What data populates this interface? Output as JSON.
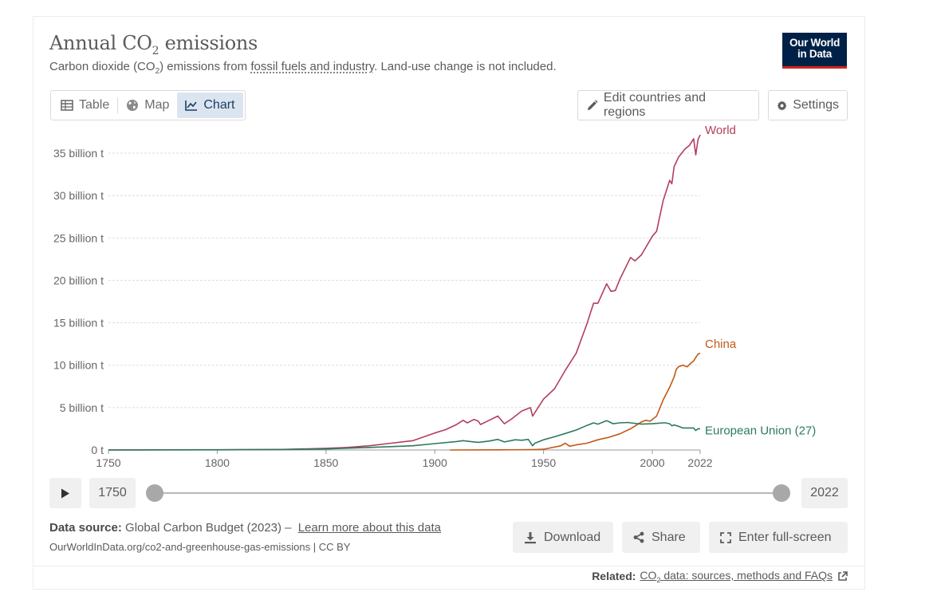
{
  "header": {
    "title_pre": "Annual CO",
    "title_sub": "2",
    "title_post": " emissions",
    "subtitle_pre": "Carbon dioxide (CO",
    "subtitle_sub": "2",
    "subtitle_mid": ") emissions from ",
    "subtitle_link": "fossil fuels and industry",
    "subtitle_post": ". Land-use change is not included.",
    "logo_line1": "Our World",
    "logo_line2": "in Data"
  },
  "tabs": [
    {
      "label": "Table",
      "icon": "table-icon"
    },
    {
      "label": "Map",
      "icon": "globe-icon"
    },
    {
      "label": "Chart",
      "icon": "line-chart-icon",
      "active": true
    }
  ],
  "toolbar": {
    "edit_label": "Edit countries and regions",
    "settings_label": "Settings"
  },
  "timeline": {
    "start": "1750",
    "end": "2022"
  },
  "footer": {
    "source_label": "Data source:",
    "source_text": " Global Carbon Budget (2023) – ",
    "learn_more": "Learn more about this data",
    "url": "OurWorldInData.org/co2-and-greenhouse-gas-emissions | CC BY",
    "download_label": "Download",
    "share_label": "Share",
    "fullscreen_label": "Enter full-screen",
    "related_label": "Related:",
    "related_link_pre": "CO",
    "related_link_sub": "2",
    "related_link_post": " data: sources, methods and FAQs"
  },
  "colors": {
    "world": "#b13f5e",
    "china": "#c05917",
    "eu": "#2e7a5c",
    "logo_bg": "#002147",
    "logo_accent": "#ce261e",
    "active_tab": "#dbe5f0"
  },
  "chart_data": {
    "type": "line",
    "title": "Annual CO₂ emissions",
    "xlim": [
      1750,
      2022
    ],
    "ylim": [
      0,
      35
    ],
    "ylabel": "",
    "xlabel": "",
    "grid": "horizontal dotted",
    "x_ticks": [
      "1750",
      "1800",
      "1850",
      "1900",
      "1950",
      "2000",
      "2022"
    ],
    "y_ticks": [
      {
        "value": 0,
        "label": "0 t"
      },
      {
        "value": 5,
        "label": "5 billion t"
      },
      {
        "value": 10,
        "label": "10 billion t"
      },
      {
        "value": 15,
        "label": "15 billion t"
      },
      {
        "value": 20,
        "label": "20 billion t"
      },
      {
        "value": 25,
        "label": "25 billion t"
      },
      {
        "value": 30,
        "label": "30 billion t"
      },
      {
        "value": 35,
        "label": "35 billion t"
      }
    ],
    "series": [
      {
        "name": "World",
        "color": "#b13f5e",
        "points": [
          [
            1750,
            0.01
          ],
          [
            1800,
            0.03
          ],
          [
            1830,
            0.07
          ],
          [
            1850,
            0.2
          ],
          [
            1860,
            0.3
          ],
          [
            1870,
            0.5
          ],
          [
            1880,
            0.8
          ],
          [
            1890,
            1.1
          ],
          [
            1900,
            2.0
          ],
          [
            1905,
            2.4
          ],
          [
            1910,
            3.0
          ],
          [
            1913,
            3.5
          ],
          [
            1915,
            3.2
          ],
          [
            1918,
            3.6
          ],
          [
            1920,
            3.4
          ],
          [
            1921,
            3.0
          ],
          [
            1925,
            3.5
          ],
          [
            1929,
            4.0
          ],
          [
            1932,
            3.1
          ],
          [
            1935,
            3.6
          ],
          [
            1940,
            4.6
          ],
          [
            1944,
            5.0
          ],
          [
            1945,
            4.0
          ],
          [
            1950,
            6.0
          ],
          [
            1955,
            7.2
          ],
          [
            1960,
            9.4
          ],
          [
            1965,
            11.4
          ],
          [
            1970,
            14.9
          ],
          [
            1973,
            17.3
          ],
          [
            1975,
            17.3
          ],
          [
            1979,
            19.6
          ],
          [
            1981,
            18.7
          ],
          [
            1983,
            18.8
          ],
          [
            1985,
            20.1
          ],
          [
            1990,
            22.7
          ],
          [
            1992,
            22.3
          ],
          [
            1995,
            23.0
          ],
          [
            2000,
            25.2
          ],
          [
            2002,
            25.8
          ],
          [
            2005,
            29.4
          ],
          [
            2008,
            31.8
          ],
          [
            2009,
            31.4
          ],
          [
            2010,
            33.4
          ],
          [
            2012,
            34.5
          ],
          [
            2015,
            35.5
          ],
          [
            2017,
            35.9
          ],
          [
            2019,
            36.7
          ],
          [
            2020,
            34.8
          ],
          [
            2021,
            36.6
          ],
          [
            2022,
            37.15
          ]
        ]
      },
      {
        "name": "China",
        "color": "#c05917",
        "points": [
          [
            1907,
            0.0
          ],
          [
            1930,
            0.02
          ],
          [
            1945,
            0.05
          ],
          [
            1950,
            0.08
          ],
          [
            1958,
            0.5
          ],
          [
            1960,
            0.8
          ],
          [
            1962,
            0.44
          ],
          [
            1965,
            0.6
          ],
          [
            1970,
            0.8
          ],
          [
            1975,
            1.2
          ],
          [
            1980,
            1.5
          ],
          [
            1985,
            1.9
          ],
          [
            1990,
            2.5
          ],
          [
            1995,
            3.3
          ],
          [
            1997,
            3.5
          ],
          [
            1999,
            3.4
          ],
          [
            2000,
            3.6
          ],
          [
            2002,
            4.0
          ],
          [
            2005,
            5.9
          ],
          [
            2008,
            7.4
          ],
          [
            2010,
            8.6
          ],
          [
            2011,
            9.5
          ],
          [
            2012,
            9.8
          ],
          [
            2014,
            10.0
          ],
          [
            2015,
            9.9
          ],
          [
            2016,
            9.8
          ],
          [
            2018,
            10.3
          ],
          [
            2019,
            10.5
          ],
          [
            2020,
            10.9
          ],
          [
            2021,
            11.3
          ],
          [
            2022,
            11.4
          ]
        ]
      },
      {
        "name": "European Union (27)",
        "color": "#2e7a5c",
        "points": [
          [
            1750,
            0.0
          ],
          [
            1800,
            0.02
          ],
          [
            1830,
            0.06
          ],
          [
            1850,
            0.12
          ],
          [
            1870,
            0.3
          ],
          [
            1890,
            0.5
          ],
          [
            1900,
            0.75
          ],
          [
            1910,
            1.0
          ],
          [
            1913,
            1.1
          ],
          [
            1918,
            0.95
          ],
          [
            1920,
            0.9
          ],
          [
            1925,
            1.05
          ],
          [
            1929,
            1.25
          ],
          [
            1932,
            0.95
          ],
          [
            1937,
            1.2
          ],
          [
            1940,
            1.15
          ],
          [
            1943,
            1.25
          ],
          [
            1945,
            0.5
          ],
          [
            1946,
            0.8
          ],
          [
            1950,
            1.2
          ],
          [
            1955,
            1.55
          ],
          [
            1960,
            1.95
          ],
          [
            1965,
            2.35
          ],
          [
            1970,
            2.9
          ],
          [
            1973,
            3.2
          ],
          [
            1975,
            3.05
          ],
          [
            1979,
            3.45
          ],
          [
            1980,
            3.35
          ],
          [
            1982,
            3.1
          ],
          [
            1985,
            3.2
          ],
          [
            1989,
            3.25
          ],
          [
            1990,
            3.2
          ],
          [
            1995,
            3.05
          ],
          [
            2000,
            3.1
          ],
          [
            2005,
            3.2
          ],
          [
            2006,
            3.2
          ],
          [
            2008,
            3.1
          ],
          [
            2009,
            2.85
          ],
          [
            2010,
            2.95
          ],
          [
            2012,
            2.8
          ],
          [
            2014,
            2.6
          ],
          [
            2015,
            2.6
          ],
          [
            2019,
            2.6
          ],
          [
            2020,
            2.3
          ],
          [
            2021,
            2.5
          ],
          [
            2022,
            2.5
          ]
        ]
      }
    ]
  }
}
